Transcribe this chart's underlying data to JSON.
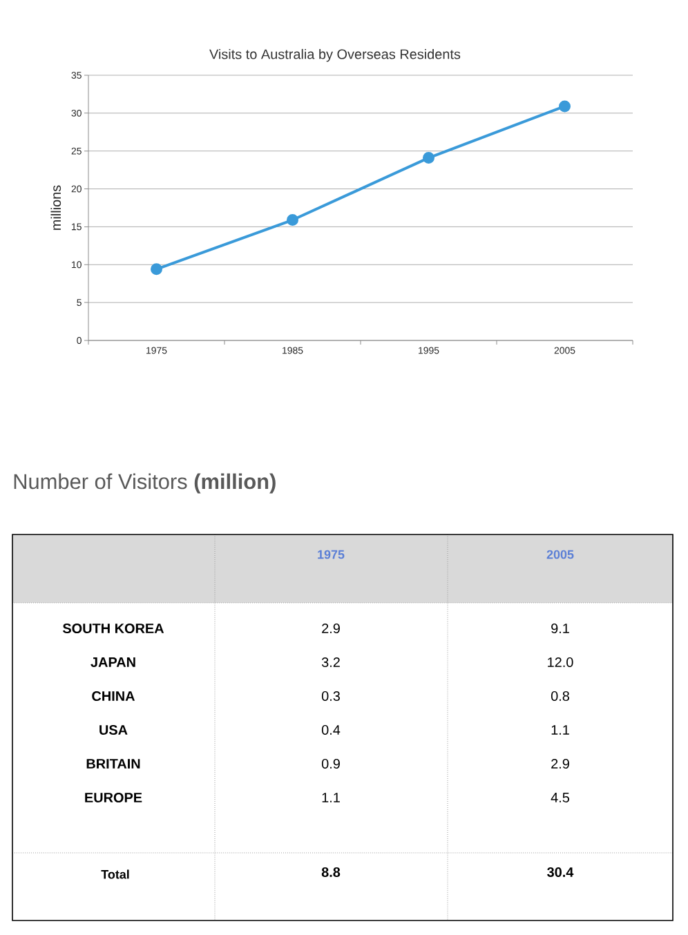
{
  "chart_data": [
    {
      "type": "line",
      "title": "Visits to Australia by Overseas Residents",
      "ylabel": "millions",
      "categories": [
        "1975",
        "1985",
        "1995",
        "2005"
      ],
      "series": [
        {
          "color": "#3a9ad9",
          "values": [
            9.4,
            15.9,
            24.1,
            30.9
          ]
        }
      ],
      "ylim": [
        0,
        35
      ],
      "yticks": [
        0,
        5,
        10,
        15,
        20,
        25,
        30,
        35
      ],
      "grid": "y",
      "marker": "circle"
    },
    {
      "type": "other",
      "title": "Number of Visitors **(million)**",
      "categories": [
        "SOUTH KOREA",
        "JAPAN",
        "CHINA",
        "USA",
        "BRITAIN",
        "EUROPE"
      ],
      "series": [
        {
          "name": "1975",
          "values": [
            2.9,
            3.2,
            0.3,
            0.4,
            0.9,
            1.1
          ],
          "value_labels": [
            "2.9",
            "3.2",
            "0.3",
            "0.4",
            "0.9",
            "1.1"
          ]
        },
        {
          "name": "2005",
          "values": [
            9.1,
            12.0,
            0.8,
            1.1,
            2.9,
            4.5
          ],
          "value_labels": [
            "9.1",
            "12.0",
            "0.8",
            "1.1",
            "2.9",
            "4.5"
          ]
        }
      ],
      "totals": [
        "8.8",
        "30.4"
      ],
      "annotations": [
        "Total"
      ]
    }
  ]
}
